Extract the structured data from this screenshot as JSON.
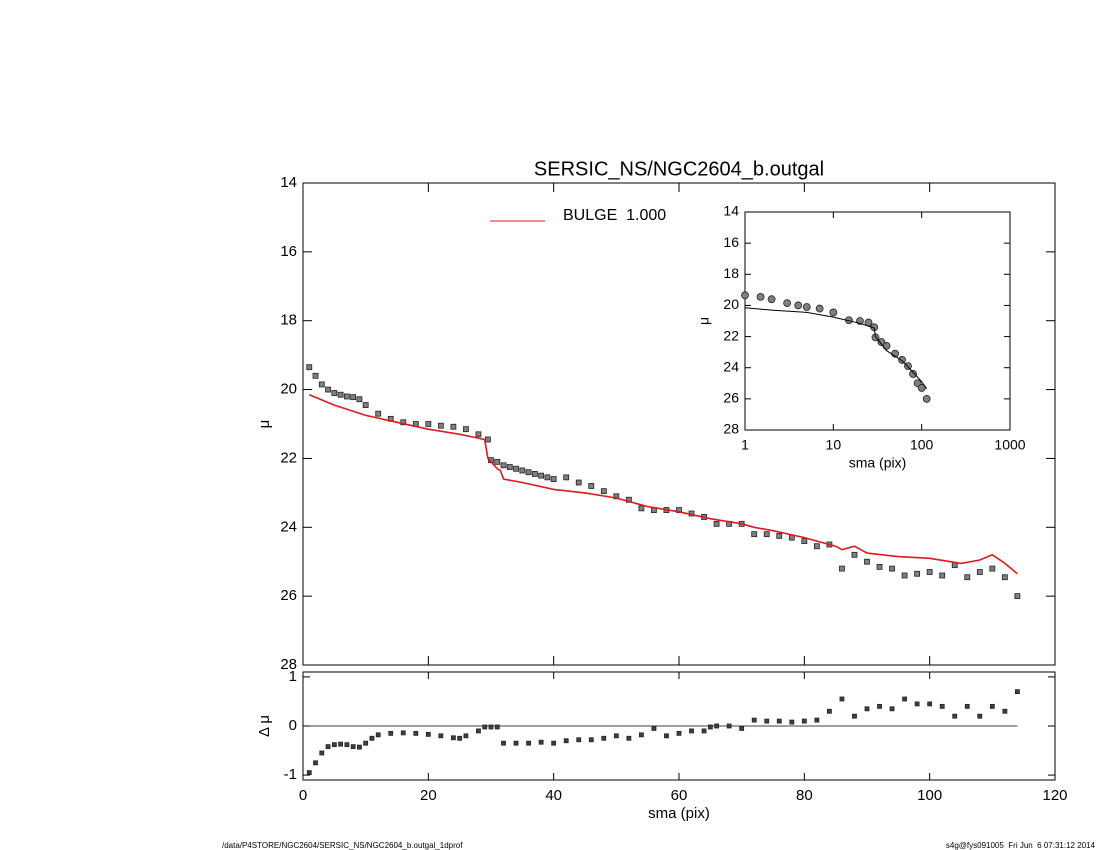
{
  "chart_data": [
    {
      "type": "scatter",
      "title": "SERSIC_NS/NGC2604_b.outgal",
      "y_label": "μ",
      "xlim": [
        0,
        120
      ],
      "xticks": [
        0,
        20,
        40,
        60,
        80,
        100,
        120
      ],
      "ylim": [
        28,
        14
      ],
      "yticks": [
        14,
        16,
        18,
        20,
        22,
        24,
        26,
        28
      ],
      "series": [
        {
          "mode": "markers",
          "color": "#808080",
          "x": [
            1,
            2,
            3,
            4,
            5,
            6,
            7,
            8,
            9,
            10,
            12,
            14,
            16,
            18,
            20,
            22,
            24,
            26,
            28,
            29.5,
            30,
            31,
            32,
            33,
            34,
            35,
            36,
            37,
            38,
            39,
            40,
            42,
            44,
            46,
            48,
            50,
            52,
            54,
            56,
            58,
            60,
            62,
            64,
            66,
            68,
            70,
            72,
            74,
            76,
            78,
            80,
            82,
            84,
            86,
            88,
            90,
            92,
            94,
            96,
            98,
            100,
            102,
            104,
            106,
            108,
            110,
            112,
            114
          ],
          "values": [
            19.35,
            19.6,
            19.85,
            20.0,
            20.1,
            20.15,
            20.2,
            20.22,
            20.28,
            20.45,
            20.7,
            20.85,
            20.95,
            21.0,
            21.0,
            21.05,
            21.08,
            21.15,
            21.3,
            21.45,
            22.05,
            22.1,
            22.2,
            22.25,
            22.3,
            22.35,
            22.4,
            22.45,
            22.5,
            22.55,
            22.6,
            22.55,
            22.7,
            22.8,
            22.95,
            23.1,
            23.2,
            23.45,
            23.5,
            23.5,
            23.5,
            23.6,
            23.7,
            23.9,
            23.9,
            23.9,
            24.2,
            24.2,
            24.25,
            24.3,
            24.4,
            24.55,
            24.5,
            25.2,
            24.8,
            25.0,
            25.15,
            25.2,
            25.4,
            25.35,
            25.3,
            25.4,
            25.1,
            25.45,
            25.3,
            25.2,
            25.45,
            26.0
          ]
        },
        {
          "mode": "line",
          "name": "BULGE  1.000",
          "color": "#e0191e",
          "x": [
            1,
            5,
            10,
            15,
            20,
            25,
            29,
            29.5,
            31,
            31.5,
            32,
            35,
            40,
            45,
            50,
            55,
            60,
            65,
            70,
            72,
            75,
            80,
            85,
            86,
            88,
            90,
            95,
            100,
            105,
            108,
            110,
            112,
            114
          ],
          "values": [
            20.15,
            20.45,
            20.75,
            20.95,
            21.15,
            21.3,
            21.45,
            22.0,
            22.3,
            22.35,
            22.6,
            22.7,
            22.9,
            23.0,
            23.15,
            23.4,
            23.55,
            23.75,
            23.9,
            24.0,
            24.1,
            24.3,
            24.55,
            24.65,
            24.55,
            24.75,
            24.85,
            24.9,
            25.05,
            24.95,
            24.8,
            25.05,
            25.35
          ]
        }
      ]
    },
    {
      "type": "scatter",
      "x_label": "sma (pix)",
      "y_label": "Δ μ",
      "xlim": [
        0,
        120
      ],
      "xticks": [
        0,
        20,
        40,
        60,
        80,
        100,
        120
      ],
      "ylim": [
        -1.1,
        1.1
      ],
      "yticks": [
        -1,
        0,
        1
      ],
      "reference_line": 0,
      "series": [
        {
          "mode": "markers",
          "color": "#404040",
          "x": [
            1,
            2,
            3,
            4,
            5,
            6,
            7,
            8,
            9,
            10,
            11,
            12,
            14,
            16,
            18,
            20,
            22,
            24,
            25,
            26,
            28,
            29,
            30,
            31,
            32,
            34,
            36,
            38,
            40,
            42,
            44,
            46,
            48,
            50,
            52,
            54,
            56,
            58,
            60,
            62,
            64,
            65,
            66,
            68,
            70,
            72,
            74,
            76,
            78,
            80,
            82,
            84,
            86,
            88,
            90,
            92,
            94,
            96,
            98,
            100,
            102,
            104,
            106,
            108,
            110,
            112,
            114
          ],
          "values": [
            -0.95,
            -0.75,
            -0.55,
            -0.42,
            -0.38,
            -0.37,
            -0.38,
            -0.42,
            -0.43,
            -0.35,
            -0.25,
            -0.18,
            -0.15,
            -0.14,
            -0.15,
            -0.17,
            -0.2,
            -0.24,
            -0.25,
            -0.2,
            -0.1,
            -0.02,
            -0.02,
            -0.02,
            -0.35,
            -0.35,
            -0.35,
            -0.33,
            -0.35,
            -0.3,
            -0.28,
            -0.28,
            -0.25,
            -0.2,
            -0.25,
            -0.18,
            -0.05,
            -0.2,
            -0.15,
            -0.1,
            -0.1,
            -0.02,
            0,
            0,
            -0.05,
            0.12,
            0.1,
            0.1,
            0.08,
            0.1,
            0.12,
            0.3,
            0.55,
            0.2,
            0.35,
            0.4,
            0.35,
            0.55,
            0.45,
            0.45,
            0.4,
            0.2,
            0.4,
            0.2,
            0.4,
            0.3,
            0.7
          ]
        }
      ]
    },
    {
      "type": "scatter",
      "x_label": "sma (pix)",
      "y_label": "μ",
      "xscale": "log",
      "xlim": [
        1,
        1000
      ],
      "xticks": [
        1,
        10,
        100,
        1000
      ],
      "ylim": [
        28,
        14
      ],
      "yticks": [
        14,
        16,
        18,
        20,
        22,
        24,
        26,
        28
      ],
      "series": [
        {
          "mode": "markers",
          "color": "#808080",
          "x": [
            1,
            1.5,
            2,
            3,
            4,
            5,
            7,
            10,
            15,
            20,
            25,
            29,
            30,
            35,
            40,
            50,
            60,
            70,
            80,
            90,
            100,
            114
          ],
          "values": [
            19.35,
            19.45,
            19.6,
            19.85,
            20.0,
            20.1,
            20.2,
            20.45,
            20.95,
            21.0,
            21.1,
            21.4,
            22.05,
            22.35,
            22.6,
            23.1,
            23.5,
            23.9,
            24.4,
            25.0,
            25.3,
            26.0
          ]
        },
        {
          "mode": "line",
          "color": "#000000",
          "x": [
            1,
            2,
            5,
            10,
            20,
            29,
            30,
            40,
            60,
            80,
            100,
            114
          ],
          "values": [
            20.15,
            20.3,
            20.45,
            20.75,
            21.15,
            21.45,
            22.0,
            22.9,
            23.55,
            24.3,
            24.9,
            25.35
          ]
        }
      ]
    }
  ],
  "footer": {
    "left": "/data/P4STORE/NGC2604/SERSIC_NS/NGC2604_b.outgal_1dprof",
    "right": "s4g@fys091005  Fri Jun  6 07:31:12 2014"
  }
}
